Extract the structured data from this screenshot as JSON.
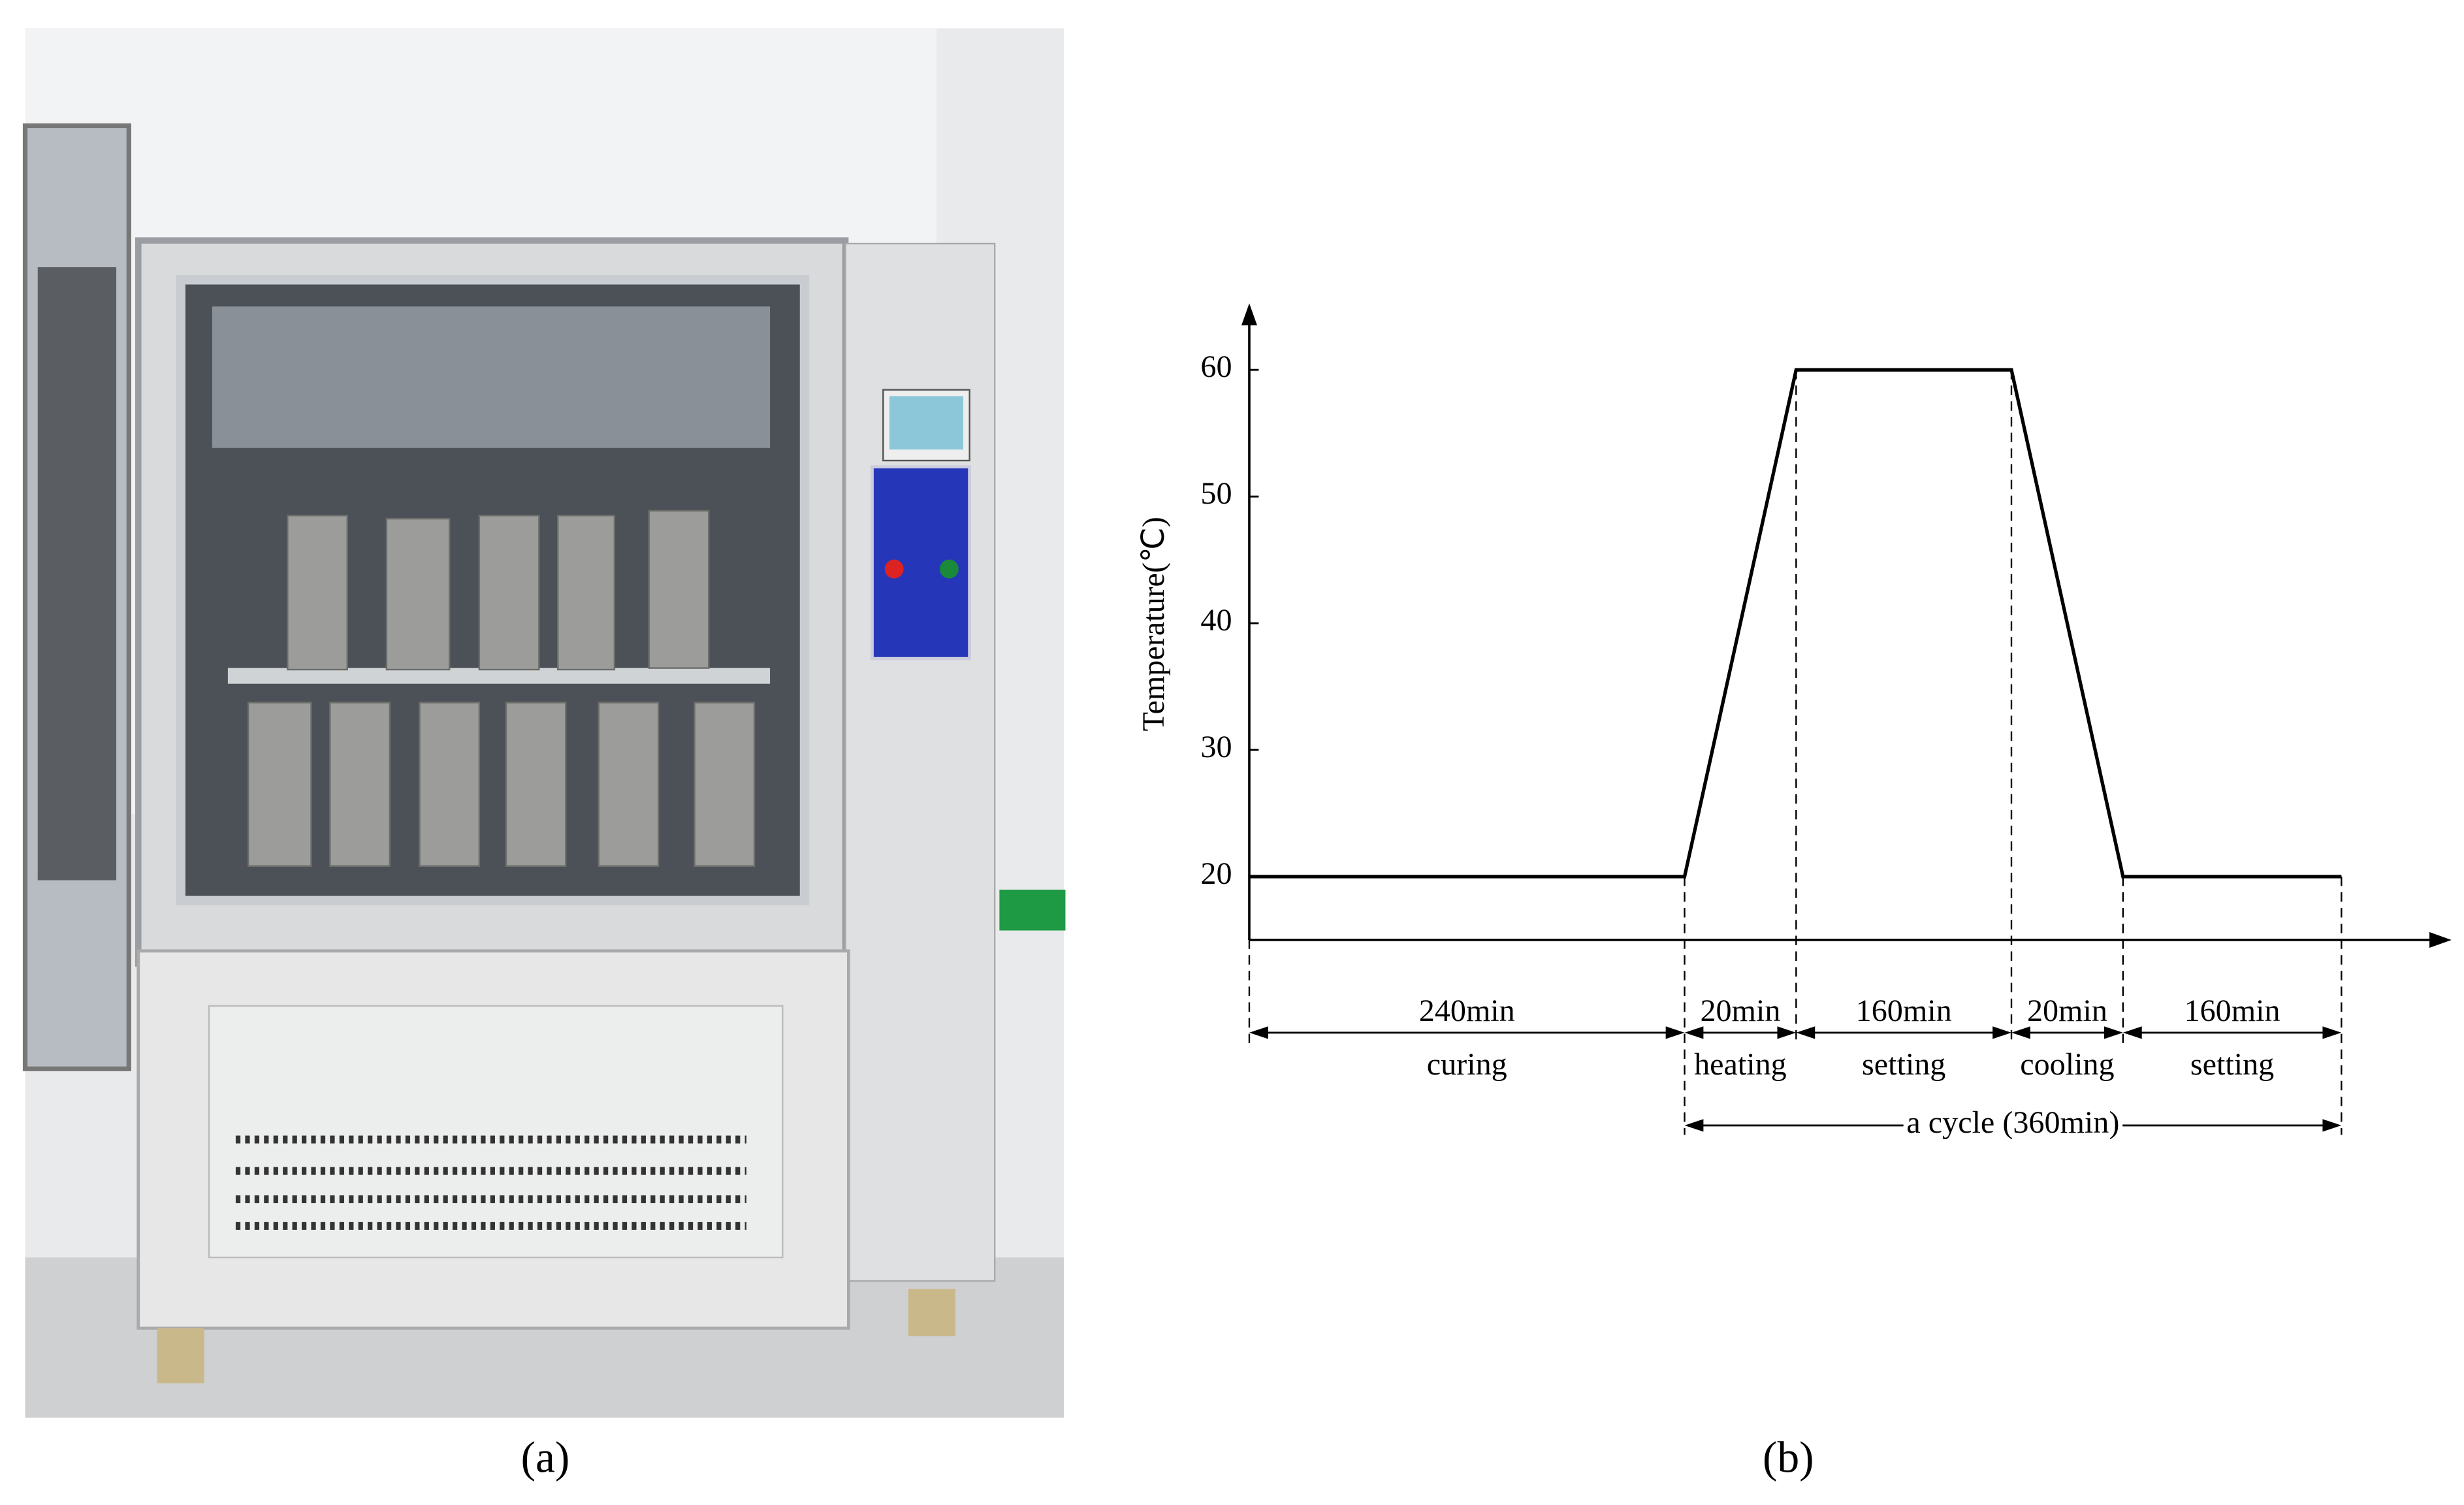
{
  "chart_data": {
    "type": "line",
    "y_label": "Temperature(℃)",
    "ylim": [
      15,
      65
    ],
    "yticks": [
      20,
      30,
      40,
      50,
      60
    ],
    "values": [
      20,
      20,
      60,
      60,
      20,
      20
    ],
    "color": "#000000",
    "durations": [
      240,
      20,
      160,
      20,
      160
    ],
    "duration_labels": [
      "240min",
      "20min",
      "160min",
      "20min",
      "160min"
    ],
    "phase_labels": [
      "curing",
      "heating",
      "setting",
      "cooling",
      "setting"
    ],
    "cycle_label": "a cycle (360min)",
    "caption": "(b)"
  },
  "photo": {
    "caption": "(a)"
  }
}
